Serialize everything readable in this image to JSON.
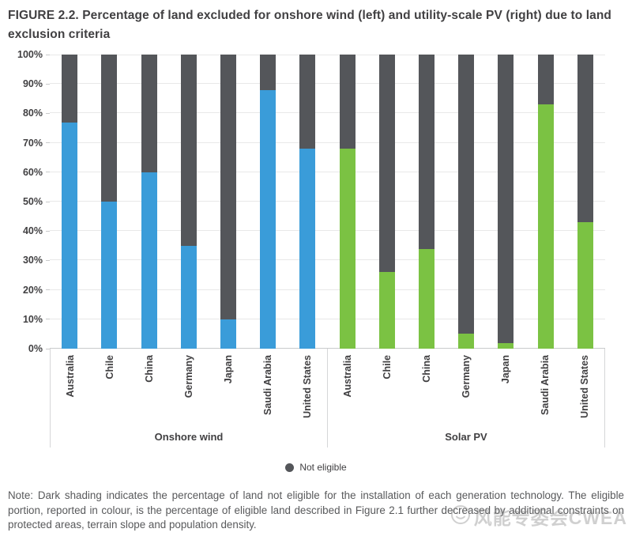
{
  "figure": {
    "title": "FIGURE 2.2. Percentage of land excluded for onshore wind (left) and utility-scale PV (right) due to land exclusion criteria",
    "note": "Note: Dark shading indicates the percentage of land not eligible for the installation of each generation technology. The eligible portion, reported in colour, is the percentage of eligible land described in Figure 2.1 further decreased by additional constraints on protected areas, terrain slope and population density.",
    "watermark": "风能专委会CWEA"
  },
  "legend": {
    "items": [
      {
        "label": "Not eligible",
        "color": "#54565A"
      }
    ]
  },
  "chart_data": {
    "type": "bar",
    "stacked": true,
    "categories": [
      "Australia",
      "Chile",
      "China",
      "Germany",
      "Japan",
      "Saudi Arabia",
      "United States"
    ],
    "groups": [
      {
        "label": "Onshore wind",
        "series_name": "Eligible land - onshore wind",
        "color": "#3A9CD9",
        "values": [
          77,
          50,
          60,
          35,
          10,
          88,
          68
        ]
      },
      {
        "label": "Solar PV",
        "series_name": "Eligible land - solar PV",
        "color": "#7BC243",
        "values": [
          68,
          26,
          34,
          5,
          2,
          83,
          43
        ]
      }
    ],
    "not_eligible": {
      "label": "Not eligible",
      "color": "#54565A",
      "note": "remainder to 100% stacked on top of each eligible value"
    },
    "ylabel": "",
    "xlabel": "",
    "ylim": [
      0,
      100
    ],
    "y_tick_step": 10,
    "y_tick_suffix": "%",
    "grid": true,
    "legend_position": "bottom",
    "colors": {
      "gridline": "#E8E8E8",
      "axis_line": "#C9CACB",
      "axis_border": "#D5D6D8",
      "label_text": "#414042",
      "note_text": "#58595B"
    }
  }
}
